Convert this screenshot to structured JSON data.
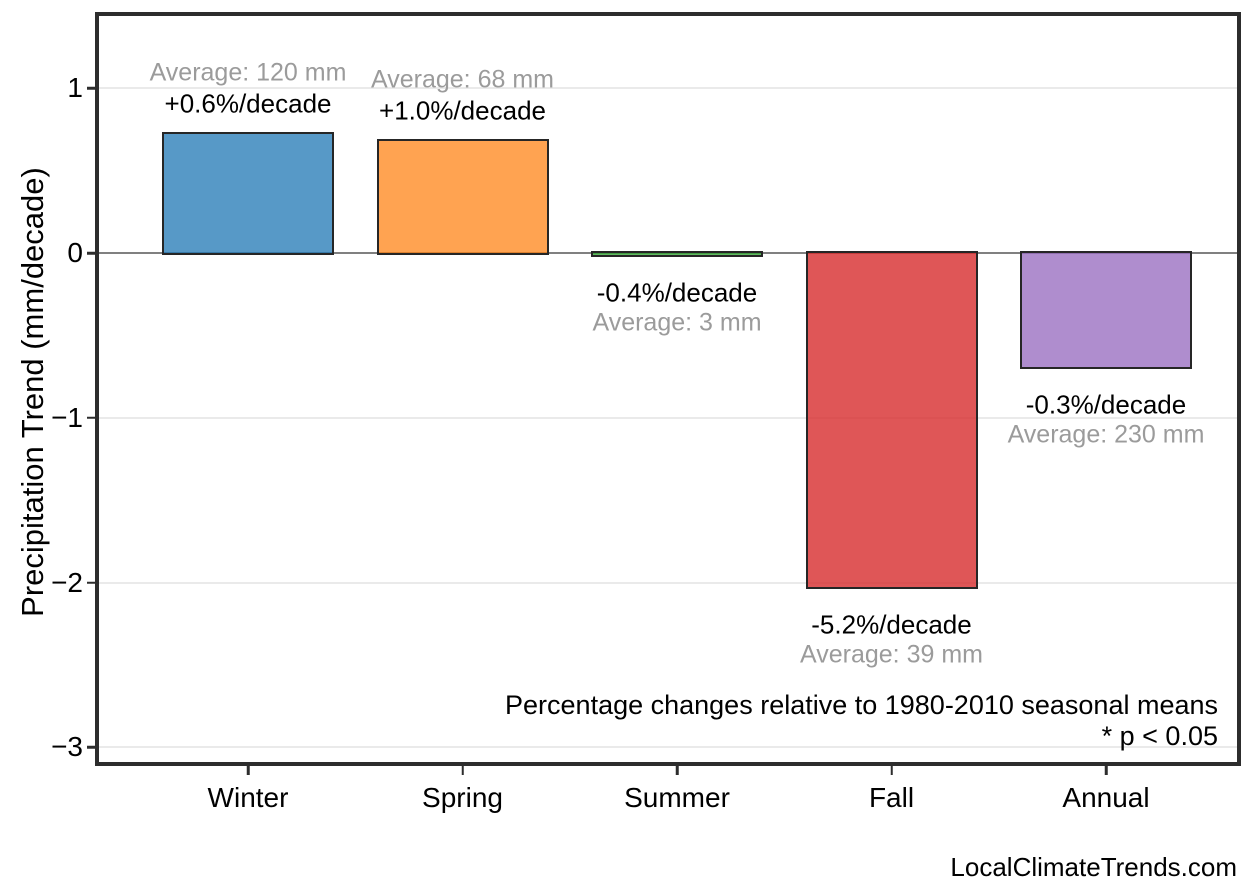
{
  "chart_data": {
    "type": "bar",
    "title": "",
    "xlabel": "",
    "ylabel": "Precipitation Trend (mm/decade)",
    "ylim": [
      -3.09,
      1.44
    ],
    "yticks": [
      1,
      0,
      -1,
      -2,
      -3
    ],
    "ytick_labels": [
      "1",
      "0",
      "−1",
      "−2",
      "−3"
    ],
    "grid": "horizontal",
    "legend": "none",
    "categories": [
      "Winter",
      "Spring",
      "Summer",
      "Fall",
      "Annual"
    ],
    "values": [
      0.72,
      0.68,
      -0.012,
      -2.03,
      -0.69
    ],
    "bars": [
      {
        "category": "Winter",
        "value": 0.72,
        "pct_label": "+0.6%/decade",
        "avg_label": "Average: 120 mm",
        "color_rgba": "rgba(31,119,180,0.75)"
      },
      {
        "category": "Spring",
        "value": 0.68,
        "pct_label": "+1.0%/decade",
        "avg_label": "Average: 68 mm",
        "color_rgba": "rgba(255,127,14,0.72)"
      },
      {
        "category": "Summer",
        "value": -0.012,
        "pct_label": "-0.4%/decade",
        "avg_label": "Average: 3 mm",
        "color_rgba": "rgba(44,160,44,0.75)"
      },
      {
        "category": "Fall",
        "value": -2.03,
        "pct_label": "-5.2%/decade",
        "avg_label": "Average: 39 mm",
        "color_rgba": "rgba(214,39,40,0.78)"
      },
      {
        "category": "Annual",
        "value": -0.69,
        "pct_label": "-0.3%/decade",
        "avg_label": "Average: 230 mm",
        "color_rgba": "rgba(148,103,189,0.75)"
      }
    ],
    "annotations": {
      "note_line1": "Percentage changes relative to 1980-2010 seasonal means",
      "note_line2": "* p < 0.05"
    },
    "colors": {
      "gridline": "#eaeaea",
      "zero_line": "#808080",
      "bar_edge": "#262626",
      "frame": "#2d2d2d",
      "pct_label": "#000000",
      "avg_label": "#9b9b9b"
    }
  },
  "footer": {
    "watermark": "LocalClimateTrends.com"
  }
}
